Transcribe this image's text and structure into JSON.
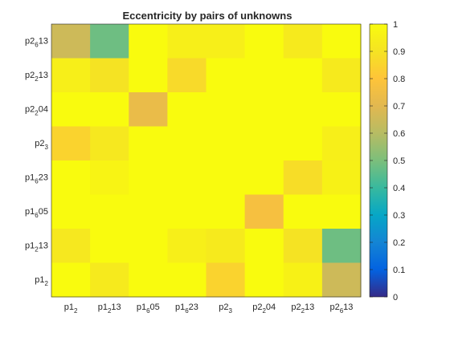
{
  "chart_data": {
    "type": "heatmap",
    "title": "Eccentricity by pairs of unknowns",
    "x_labels": [
      {
        "base": "p1",
        "sub": "2",
        "tail": ""
      },
      {
        "base": "p1",
        "sub": "2",
        "tail": "13"
      },
      {
        "base": "p1",
        "sub": "6",
        "tail": "05"
      },
      {
        "base": "p1",
        "sub": "6",
        "tail": "23"
      },
      {
        "base": "p2",
        "sub": "3",
        "tail": ""
      },
      {
        "base": "p2",
        "sub": "2",
        "tail": "04"
      },
      {
        "base": "p2",
        "sub": "2",
        "tail": "13"
      },
      {
        "base": "p2",
        "sub": "6",
        "tail": "13"
      }
    ],
    "y_labels": [
      {
        "base": "p2",
        "sub": "6",
        "tail": "13"
      },
      {
        "base": "p2",
        "sub": "2",
        "tail": "13"
      },
      {
        "base": "p2",
        "sub": "2",
        "tail": "04"
      },
      {
        "base": "p2",
        "sub": "3",
        "tail": ""
      },
      {
        "base": "p1",
        "sub": "6",
        "tail": "23"
      },
      {
        "base": "p1",
        "sub": "6",
        "tail": "05"
      },
      {
        "base": "p1",
        "sub": "2",
        "tail": "13"
      },
      {
        "base": "p1",
        "sub": "2",
        "tail": ""
      }
    ],
    "values": [
      [
        0.65,
        0.48,
        1.0,
        0.95,
        0.95,
        1.0,
        0.93,
        1.0
      ],
      [
        0.95,
        0.9,
        1.0,
        0.87,
        1.0,
        1.0,
        1.0,
        0.93
      ],
      [
        1.0,
        1.0,
        0.73,
        1.0,
        1.0,
        1.0,
        1.0,
        1.0
      ],
      [
        0.85,
        0.92,
        1.0,
        1.0,
        1.0,
        1.0,
        1.0,
        0.95
      ],
      [
        1.0,
        0.97,
        1.0,
        1.0,
        1.0,
        1.0,
        0.88,
        0.96
      ],
      [
        1.0,
        1.0,
        1.0,
        1.0,
        1.0,
        0.77,
        1.0,
        1.0
      ],
      [
        0.92,
        1.0,
        1.0,
        0.95,
        0.93,
        1.0,
        0.9,
        0.48
      ],
      [
        1.0,
        0.93,
        1.0,
        1.0,
        0.85,
        1.0,
        0.96,
        0.65
      ]
    ],
    "colorbar": {
      "min": 0,
      "max": 1,
      "ticks": [
        "0",
        "0.1",
        "0.2",
        "0.3",
        "0.4",
        "0.5",
        "0.6",
        "0.7",
        "0.8",
        "0.9",
        "1"
      ],
      "colormap": "parula"
    },
    "grid": false
  }
}
